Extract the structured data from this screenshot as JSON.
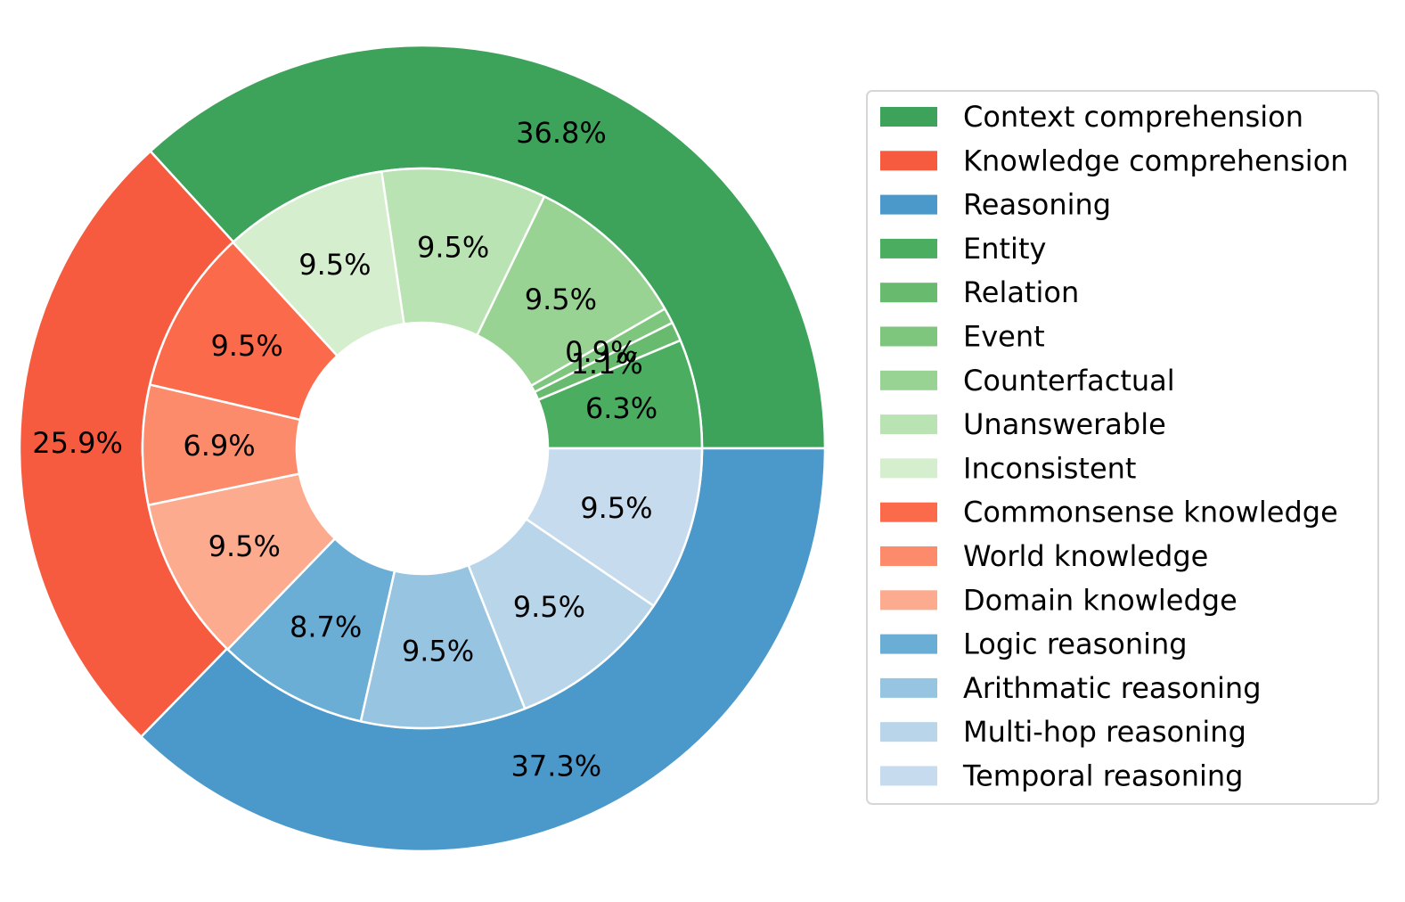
{
  "chart_data": {
    "type": "pie",
    "subtype": "nested-donut",
    "outer": [
      {
        "name": "Context comprehension",
        "value": 36.8,
        "label": "36.8%",
        "color": "#3da35a"
      },
      {
        "name": "Knowledge comprehension",
        "value": 25.9,
        "label": "25.9%",
        "color": "#f65b40"
      },
      {
        "name": "Reasoning",
        "value": 37.3,
        "label": "37.3%",
        "color": "#4b99ca"
      }
    ],
    "inner": [
      {
        "name": "Entity",
        "value": 6.3,
        "label": "6.3%",
        "color": "#4bad5f"
      },
      {
        "name": "Relation",
        "value": 1.1,
        "label": "1.1%",
        "color": "#67ba6e"
      },
      {
        "name": "Event",
        "value": 0.9,
        "label": "0.9%",
        "color": "#7ec67d"
      },
      {
        "name": "Counterfactual",
        "value": 9.5,
        "label": "9.5%",
        "color": "#98d393"
      },
      {
        "name": "Unanswerable",
        "value": 9.5,
        "label": "9.5%",
        "color": "#bae3b3"
      },
      {
        "name": "Inconsistent",
        "value": 9.5,
        "label": "9.5%",
        "color": "#d4eece"
      },
      {
        "name": "Commonsense knowledge",
        "value": 9.5,
        "label": "9.5%",
        "color": "#fc6a4c"
      },
      {
        "name": "World knowledge",
        "value": 6.9,
        "label": "6.9%",
        "color": "#fc8b6c"
      },
      {
        "name": "Domain knowledge",
        "value": 9.5,
        "label": "9.5%",
        "color": "#fcab8f"
      },
      {
        "name": "Logic reasoning",
        "value": 8.7,
        "label": "8.7%",
        "color": "#6aadd5"
      },
      {
        "name": "Arithmatic reasoning",
        "value": 9.5,
        "label": "9.5%",
        "color": "#97c4e0"
      },
      {
        "name": "Multi-hop reasoning",
        "value": 9.5,
        "label": "9.5%",
        "color": "#b9d5ea"
      },
      {
        "name": "Temporal reasoning",
        "value": 9.5,
        "label": "9.5%",
        "color": "#c7dbef"
      }
    ],
    "legend_placement": "right",
    "start_angle_deg": 0,
    "direction": "counterclockwise"
  }
}
